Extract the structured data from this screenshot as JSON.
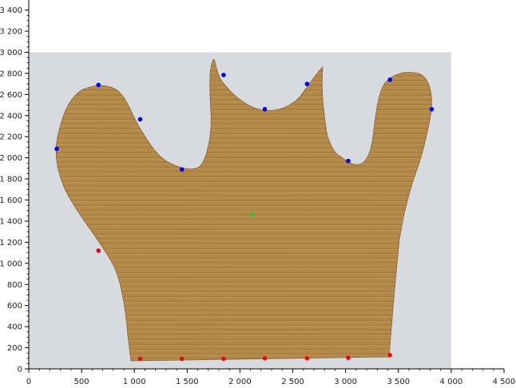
{
  "chart_data": {
    "type": "scatter",
    "title": "",
    "xlabel": "",
    "ylabel": "",
    "xlim": [
      0,
      4500
    ],
    "ylim": [
      0,
      3450
    ],
    "x_ticks": [
      0,
      500,
      1000,
      1500,
      2000,
      2500,
      3000,
      3500,
      4000,
      4500
    ],
    "x_tick_labels": [
      "0",
      "500",
      "1 000",
      "1 500",
      "2 000",
      "2 500",
      "3 000",
      "3 500",
      "4 000",
      "4 500"
    ],
    "y_ticks": [
      0,
      200,
      400,
      600,
      800,
      1000,
      1200,
      1400,
      1600,
      1800,
      2000,
      2200,
      2400,
      2600,
      2800,
      3000,
      3200,
      3400
    ],
    "y_tick_labels": [
      "0",
      "200",
      "400",
      "600",
      "800",
      "1 000",
      "1 200",
      "1 400",
      "1 600",
      "1 800",
      "2 000",
      "2 200",
      "2 400",
      "2 600",
      "2 800",
      "3 000",
      "3 200",
      "3 400"
    ],
    "background_image": {
      "description_icon": "wooden-hand-shape-photo",
      "extent": {
        "x": [
          0,
          4000
        ],
        "y": [
          0,
          3000
        ]
      }
    },
    "grid": false,
    "series": [
      {
        "color": "#0000ff",
        "points": [
          {
            "x": 265,
            "y": 2085
          },
          {
            "x": 660,
            "y": 2690
          },
          {
            "x": 1055,
            "y": 2365
          },
          {
            "x": 1450,
            "y": 1890
          },
          {
            "x": 1845,
            "y": 2785
          },
          {
            "x": 2235,
            "y": 2460
          },
          {
            "x": 2635,
            "y": 2700
          },
          {
            "x": 3025,
            "y": 1970
          },
          {
            "x": 3420,
            "y": 2740
          },
          {
            "x": 3815,
            "y": 2460
          }
        ]
      },
      {
        "color": "#ff0000",
        "points": [
          {
            "x": 660,
            "y": 1120
          },
          {
            "x": 1055,
            "y": 95
          },
          {
            "x": 1450,
            "y": 95
          },
          {
            "x": 1845,
            "y": 95
          },
          {
            "x": 2235,
            "y": 100
          },
          {
            "x": 2635,
            "y": 100
          },
          {
            "x": 3025,
            "y": 105
          },
          {
            "x": 3420,
            "y": 130
          }
        ]
      },
      {
        "color": "#22cc22",
        "points": [
          {
            "x": 2115,
            "y": 1460
          }
        ]
      }
    ]
  }
}
